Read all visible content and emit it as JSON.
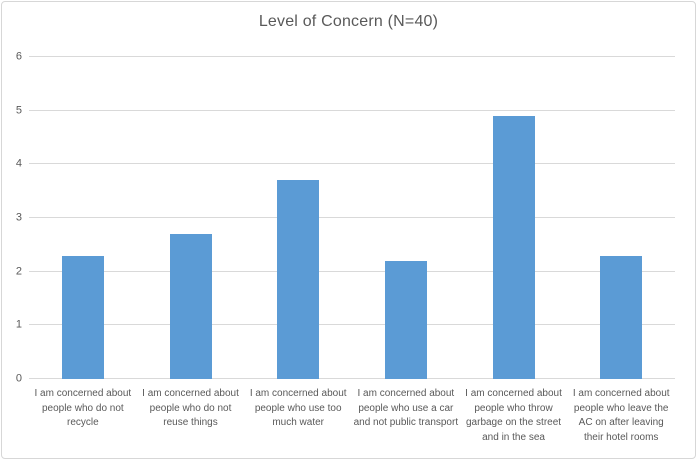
{
  "chart_data": {
    "type": "bar",
    "title": "Level of Concern (N=40)",
    "categories": [
      "I am concerned about people who do not recycle",
      "I am concerned about people who do not reuse things",
      "I am concerned about people who use too much water",
      "I am concerned about people who use a car and not public transport",
      "I am concerned about people who throw garbage on the street and in the sea",
      "I am concerned about people who leave the AC on after leaving their hotel rooms"
    ],
    "values": [
      2.3,
      2.7,
      3.7,
      2.2,
      4.9,
      2.3
    ],
    "xlabel": "",
    "ylabel": "",
    "ylim": [
      0,
      6
    ],
    "ytick_step": 1,
    "yticks": [
      0,
      1,
      2,
      3,
      4,
      5,
      6
    ],
    "grid": true,
    "legend": "none",
    "colors": {
      "bar": "#5b9bd5",
      "text": "#595959",
      "gridline": "#d9d9d9",
      "border": "#d7d7d7",
      "background": "#ffffff"
    }
  }
}
